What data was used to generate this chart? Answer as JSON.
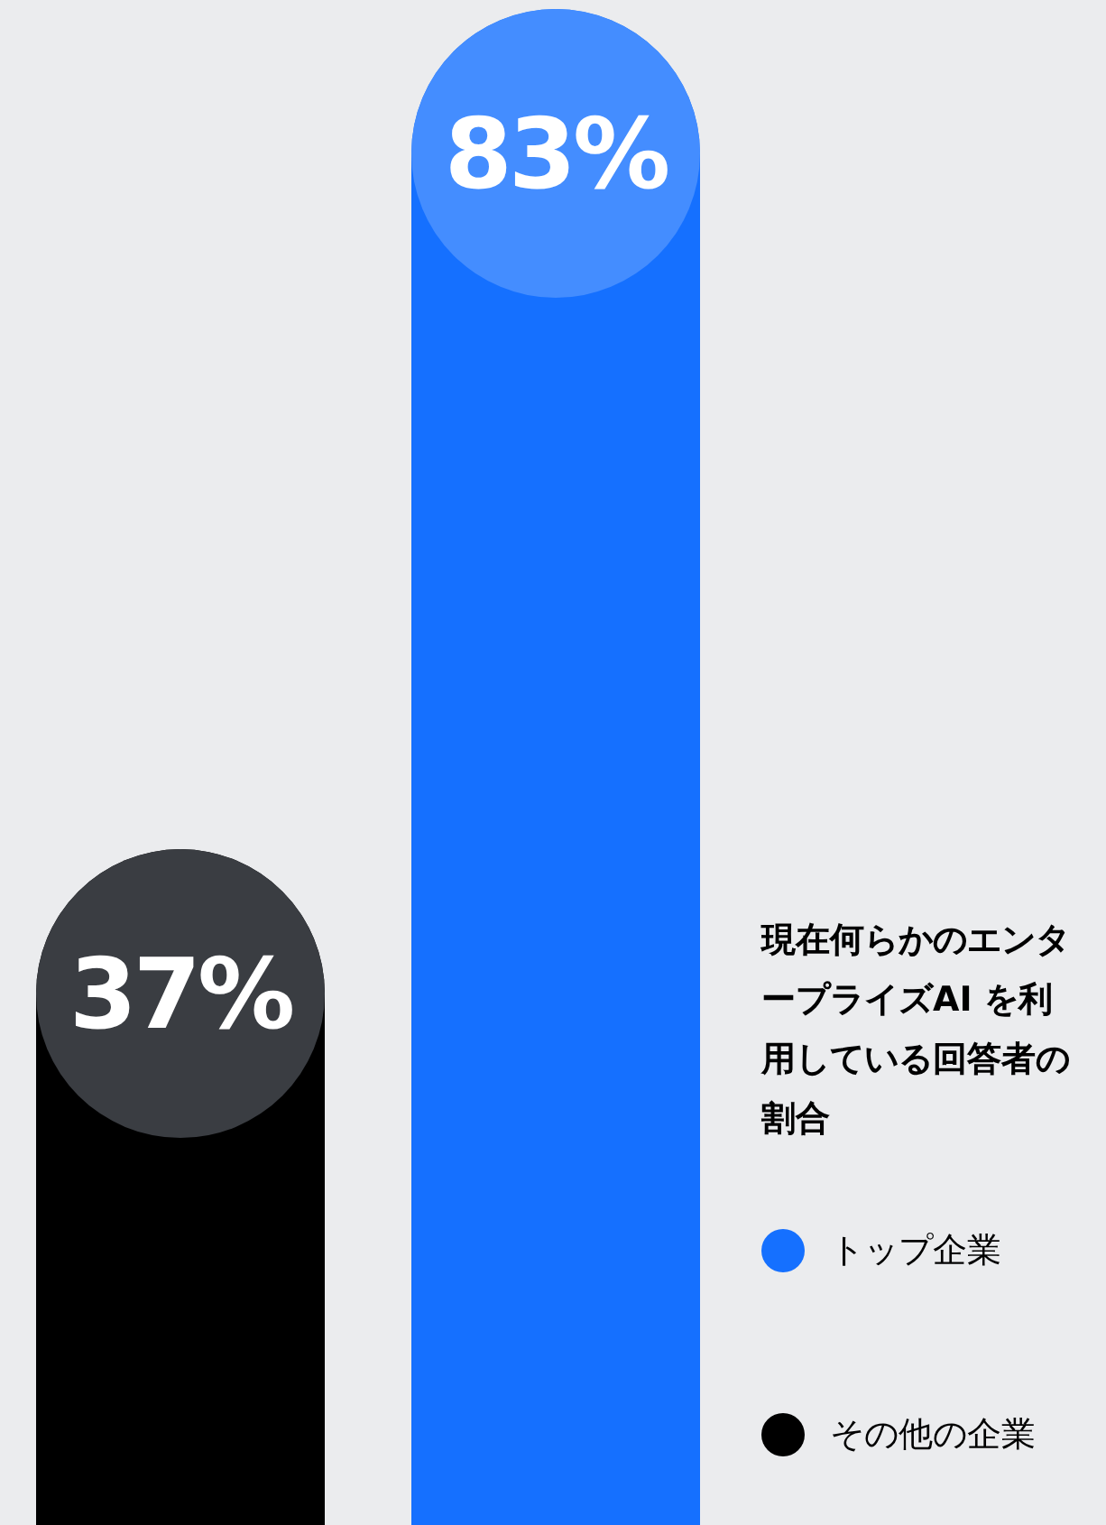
{
  "chart_data": {
    "type": "bar",
    "categories": [
      null,
      null
    ],
    "stacked": true,
    "series": [
      {
        "name": "トップ企業",
        "color": "#1570ff",
        "values": [
          null,
          83
        ],
        "value_labels": [
          null,
          "83%"
        ]
      },
      {
        "name": "その他の企業",
        "color": "#000000",
        "values": [
          37,
          null
        ],
        "value_labels": [
          "37%",
          null
        ]
      }
    ],
    "legend": "right",
    "legend_title": "現在何らかのエンタープライズAI を利用している回答者の割合"
  }
}
